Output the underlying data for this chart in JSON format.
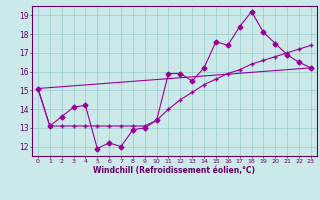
{
  "xlabel": "Windchill (Refroidissement éolien,°C)",
  "background_color": "#cbe9e9",
  "grid_color": "#99cccc",
  "line_color": "#990099",
  "xlim": [
    -0.5,
    23.5
  ],
  "ylim": [
    11.5,
    19.5
  ],
  "yticks": [
    12,
    13,
    14,
    15,
    16,
    17,
    18,
    19
  ],
  "xticks": [
    0,
    1,
    2,
    3,
    4,
    5,
    6,
    7,
    8,
    9,
    10,
    11,
    12,
    13,
    14,
    15,
    16,
    17,
    18,
    19,
    20,
    21,
    22,
    23
  ],
  "series1_x": [
    0,
    1,
    2,
    3,
    4,
    5,
    6,
    7,
    8,
    9,
    10,
    11,
    12,
    13,
    14,
    15,
    16,
    17,
    18,
    19,
    20,
    21,
    22,
    23
  ],
  "series1_y": [
    15.1,
    13.1,
    13.6,
    14.1,
    14.2,
    11.9,
    12.2,
    12.0,
    12.9,
    13.0,
    13.4,
    15.9,
    15.9,
    15.5,
    16.2,
    17.6,
    17.4,
    18.4,
    19.2,
    18.1,
    17.5,
    16.9,
    16.5,
    16.2
  ],
  "series2_x": [
    0,
    1,
    2,
    3,
    4,
    5,
    6,
    7,
    8,
    9,
    10,
    11,
    12,
    13,
    14,
    15,
    16,
    17,
    18,
    19,
    20,
    21,
    22,
    23
  ],
  "series2_y": [
    15.1,
    13.1,
    13.1,
    13.1,
    13.1,
    13.1,
    13.1,
    13.1,
    13.1,
    13.1,
    13.4,
    14.0,
    14.5,
    14.9,
    15.3,
    15.6,
    15.9,
    16.1,
    16.4,
    16.6,
    16.8,
    17.0,
    17.2,
    17.4
  ],
  "series3_x": [
    0,
    23
  ],
  "series3_y": [
    15.1,
    16.2
  ]
}
